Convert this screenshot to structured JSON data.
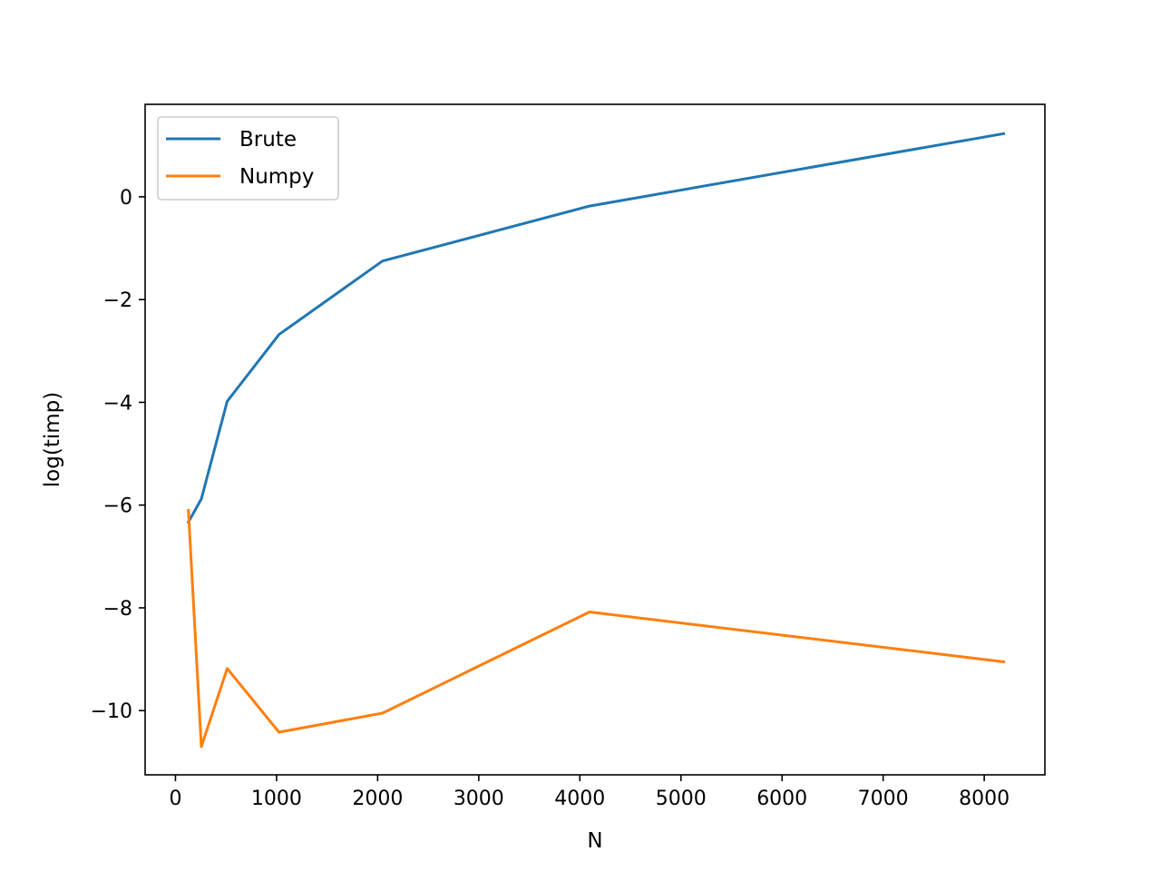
{
  "chart_data": {
    "type": "line",
    "title": "",
    "xlabel": "N",
    "ylabel": "log(timp)",
    "xlim": [
      -300,
      8600
    ],
    "ylim": [
      -11.25,
      1.8
    ],
    "xticks": [
      0,
      1000,
      2000,
      3000,
      4000,
      5000,
      6000,
      7000,
      8000
    ],
    "xtick_labels": [
      "0",
      "1000",
      "2000",
      "3000",
      "4000",
      "5000",
      "6000",
      "7000",
      "8000"
    ],
    "yticks": [
      0,
      -2,
      -4,
      -6,
      -8,
      -10
    ],
    "ytick_labels": [
      "0",
      "−2",
      "−4",
      "−6",
      "−8",
      "−10"
    ],
    "grid": false,
    "legend_position": "upper left",
    "series": [
      {
        "name": "Brute",
        "color": "#1f77b4",
        "x": [
          128,
          256,
          512,
          1024,
          2048,
          4096,
          8192
        ],
        "y": [
          -6.33,
          -5.88,
          -3.98,
          -2.68,
          -1.25,
          -0.18,
          1.23
        ]
      },
      {
        "name": "Numpy",
        "color": "#ff7f0e",
        "x": [
          128,
          256,
          512,
          1024,
          2048,
          4096,
          8192
        ],
        "y": [
          -6.1,
          -10.7,
          -9.18,
          -10.42,
          -10.05,
          -8.08,
          -9.05
        ]
      }
    ]
  }
}
